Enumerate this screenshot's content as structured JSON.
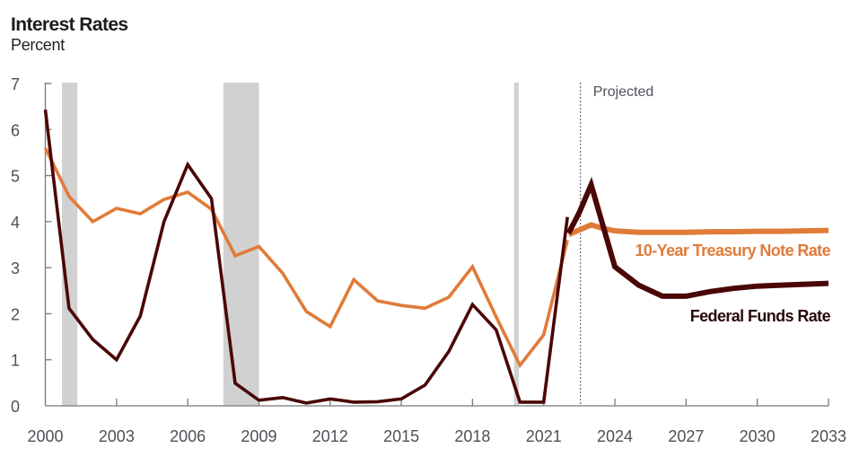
{
  "chart_data": {
    "type": "line",
    "title": "Interest Rates",
    "subtitle": "Percent",
    "xlabel": "",
    "ylabel": "Percent",
    "xlim": [
      2000,
      2033
    ],
    "ylim": [
      0,
      7
    ],
    "x_ticks": [
      "2000",
      "2003",
      "2006",
      "2009",
      "2012",
      "2015",
      "2018",
      "2021",
      "2024",
      "2027",
      "2030",
      "2033"
    ],
    "y_ticks": [
      "0",
      "1",
      "2",
      "3",
      "4",
      "5",
      "6",
      "7"
    ],
    "grid": false,
    "projected_marker": {
      "x": 2022.55,
      "label": "Projected"
    },
    "recessions": [
      {
        "start": 2000.7,
        "end": 2001.35
      },
      {
        "start": 2007.5,
        "end": 2009.0
      },
      {
        "start": 2019.75,
        "end": 2019.95
      }
    ],
    "series": [
      {
        "name": "10-Year Treasury Note Rate",
        "label": "10-Year Treasury Note Rate",
        "color": "#e07b39",
        "segments": [
          {
            "kind": "historical",
            "x": [
              2000,
              2001,
              2002,
              2003,
              2004,
              2005,
              2006,
              2007,
              2008,
              2009,
              2010,
              2011,
              2012,
              2013,
              2014,
              2015,
              2016,
              2017,
              2018,
              2019,
              2020,
              2021,
              2022
            ],
            "y": [
              5.6,
              4.55,
              4.0,
              4.29,
              4.17,
              4.48,
              4.64,
              4.27,
              3.26,
              3.46,
              2.88,
              2.05,
              1.72,
              2.74,
              2.28,
              2.18,
              2.12,
              2.36,
              3.02,
              1.93,
              0.88,
              1.54,
              3.6
            ]
          },
          {
            "kind": "projected",
            "x": [
              2022.05,
              2022.5,
              2023,
              2023.5,
              2024,
              2025,
              2026,
              2027,
              2028,
              2029,
              2030,
              2031,
              2032,
              2033
            ],
            "y": [
              3.72,
              3.82,
              3.93,
              3.85,
              3.8,
              3.77,
              3.77,
              3.77,
              3.78,
              3.78,
              3.79,
              3.79,
              3.8,
              3.81
            ]
          }
        ]
      },
      {
        "name": "Federal Funds Rate",
        "label": "Federal Funds Rate",
        "color": "#4a0707",
        "segments": [
          {
            "kind": "historical",
            "x": [
              2000,
              2001,
              2002,
              2003,
              2004,
              2005,
              2006,
              2007,
              2008,
              2009,
              2010,
              2011,
              2012,
              2013,
              2014,
              2015,
              2016,
              2017,
              2018,
              2019,
              2020,
              2021,
              2022
            ],
            "y": [
              6.43,
              2.12,
              1.44,
              1.0,
              1.95,
              4.0,
              5.24,
              4.5,
              0.49,
              0.12,
              0.18,
              0.06,
              0.15,
              0.08,
              0.09,
              0.15,
              0.45,
              1.18,
              2.2,
              1.65,
              0.08,
              0.08,
              4.1
            ]
          },
          {
            "kind": "projected",
            "x": [
              2022.05,
              2022.5,
              2023,
              2024,
              2025,
              2026,
              2027,
              2028,
              2029,
              2030,
              2031,
              2032,
              2033
            ],
            "y": [
              3.75,
              4.2,
              4.8,
              3.02,
              2.62,
              2.38,
              2.38,
              2.48,
              2.55,
              2.6,
              2.62,
              2.64,
              2.66
            ]
          }
        ]
      }
    ]
  }
}
